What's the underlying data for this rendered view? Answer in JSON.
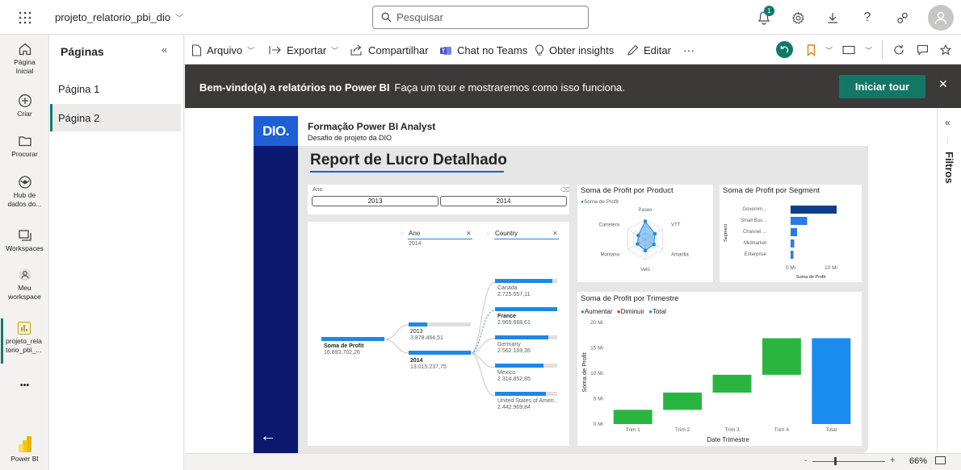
{
  "topbar": {
    "app_name": "projeto_relatorio_pbi_dio",
    "search_placeholder": "Pesquisar",
    "notification_count": "1"
  },
  "rail": {
    "items": [
      {
        "label_1": "Página",
        "label_2": "Inicial"
      },
      {
        "label_1": "Criar",
        "label_2": ""
      },
      {
        "label_1": "Procurar",
        "label_2": ""
      },
      {
        "label_1": "Hub de",
        "label_2": "dados do..."
      },
      {
        "label_1": "Workspaces",
        "label_2": ""
      },
      {
        "label_1": "Meu",
        "label_2": "workspace"
      },
      {
        "label_1": "projeto_rela",
        "label_2": "torio_pbi_..."
      },
      {
        "label_1": "Power BI",
        "label_2": ""
      }
    ],
    "more": "•••"
  },
  "pages_pane": {
    "title": "Páginas",
    "collapse": "«",
    "pages": [
      "Página 1",
      "Página 2"
    ]
  },
  "toolbar": {
    "file": "Arquivo",
    "export": "Exportar",
    "share": "Compartilhar",
    "teams": "Chat no Teams",
    "insights": "Obter insights",
    "edit": "Editar",
    "more": "···"
  },
  "banner": {
    "bold": "Bem-vindo(a) a relatórios no Power BI",
    "text": "Faça um tour e mostraremos como isso funciona.",
    "button": "Iniciar tour",
    "close": "✕"
  },
  "filters_label": "Filtros",
  "report": {
    "logo": "DIO.",
    "title": "Formação Power BI Analyst",
    "subtitle": "Desafio de projeto da DIO",
    "big_title": "Report de Lucro Detalhado",
    "slicer": {
      "label": "Ano",
      "options": [
        "2013",
        "2014"
      ]
    },
    "decomp": {
      "field1": "Ano",
      "field1_value": "2014",
      "field2": "Country",
      "root_label": "Soma de Profit",
      "root_value": "16.893.702,26",
      "years": [
        {
          "label": "2013",
          "value": "3.878.464,51",
          "bold": false
        },
        {
          "label": "2014",
          "value": "13.015.237,75",
          "bold": true
        }
      ],
      "countries": [
        {
          "label": "Canada",
          "value": "2.725.557,11",
          "bold": false
        },
        {
          "label": "France",
          "value": "2.969.688,61",
          "bold": true
        },
        {
          "label": "Germany",
          "value": "2.562.169,35",
          "bold": false
        },
        {
          "label": "Mexico",
          "value": "2.314.852,85",
          "bold": false
        },
        {
          "label": "United States of Ameri...",
          "value": "2.442.969,84",
          "bold": false
        }
      ]
    }
  },
  "chart_data": [
    {
      "type": "radar",
      "title": "Soma de Profit por Product",
      "legend": [
        "Soma de Profit"
      ],
      "categories": [
        "Paseo",
        "VTT",
        "Amarilla",
        "Velo",
        "Montana",
        "Carretera"
      ],
      "values": [
        0.9,
        0.55,
        0.5,
        0.55,
        0.45,
        0.4
      ]
    },
    {
      "type": "bar",
      "title": "Soma de Profit por Segment",
      "categories": [
        "Governm...",
        "Small Bus...",
        "Channel ...",
        "Midmarket",
        "Enterprise"
      ],
      "values": [
        11.4,
        4.1,
        1.6,
        0.9,
        0.7
      ],
      "xlabel": "Soma de Profit",
      "ylabel": "Segment",
      "xticks": [
        "0 Mi",
        "10 Mi"
      ],
      "xlim": [
        0,
        12
      ]
    },
    {
      "type": "waterfall",
      "title": "Soma de Profit por Trimestre",
      "legend": [
        "Aumentar",
        "Diminuir",
        "Total"
      ],
      "categories": [
        "Trim 1",
        "Trim 2",
        "Trim 3",
        "Trim 4",
        "Total"
      ],
      "values": [
        2.8,
        3.4,
        3.5,
        7.2,
        16.9
      ],
      "xlabel": "Date Trimestre",
      "ylabel": "Soma de Profit",
      "yticks": [
        "0 Mi",
        "5 Mi",
        "10 Mi",
        "15 Mi",
        "20 Mi"
      ],
      "ylim": [
        0,
        20
      ]
    }
  ],
  "statusbar": {
    "zoom": "66%",
    "minus": "-",
    "plus": "+"
  },
  "colors": {
    "brand": "#117865",
    "report_blue": "#1e5fd6",
    "navy": "#0b1a6e",
    "increase": "#2ab540",
    "total": "#1a8cf0"
  }
}
